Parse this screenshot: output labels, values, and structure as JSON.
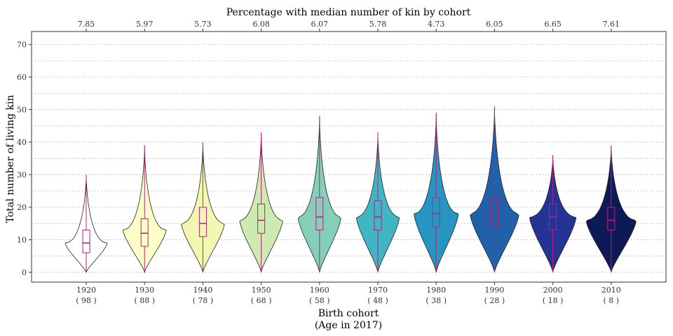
{
  "chart_data": {
    "type": "violin",
    "title": "Percentage with median number of kin by cohort",
    "xlabel_line1": "Birth cohort",
    "xlabel_line2": "(Age in 2017)",
    "ylabel": "Total number of living kin",
    "ylim": [
      -3,
      74
    ],
    "yticks": [
      0,
      10,
      20,
      30,
      40,
      50,
      60,
      70
    ],
    "grid": "horizontal dotted",
    "categories": [
      "1920",
      "1930",
      "1940",
      "1950",
      "1960",
      "1970",
      "1980",
      "1990",
      "2000",
      "2010"
    ],
    "ages": [
      "( 98 )",
      "( 88 )",
      "( 78 )",
      "( 68 )",
      "( 58 )",
      "( 48 )",
      "( 38 )",
      "( 28 )",
      "( 18 )",
      "( 8 )"
    ],
    "top_labels": [
      "7.85",
      "5.97",
      "5.73",
      "6.08",
      "6.07",
      "5.78",
      "4.73",
      "6.05",
      "6.65",
      "7.61"
    ],
    "fill_colors": [
      "#ffffff",
      "#fdfdc8",
      "#f2f7b2",
      "#cfeab0",
      "#84cfba",
      "#40b5c4",
      "#2596c2",
      "#2161aa",
      "#253494",
      "#0c1a56"
    ],
    "box_color": "#c51b7d",
    "series": [
      {
        "min": 0,
        "max": 30,
        "q1": 6,
        "median": 9,
        "q3": 13,
        "mode": 9,
        "width": 0.72
      },
      {
        "min": 0,
        "max": 39,
        "q1": 8,
        "median": 12,
        "q3": 16.5,
        "mode": 13,
        "width": 0.74
      },
      {
        "min": 0,
        "max": 40,
        "q1": 11,
        "median": 15,
        "q3": 20,
        "mode": 15,
        "width": 0.74
      },
      {
        "min": 0,
        "max": 43,
        "q1": 12,
        "median": 16,
        "q3": 21,
        "mode": 16,
        "width": 0.74
      },
      {
        "min": 0,
        "max": 48,
        "q1": 13,
        "median": 17,
        "q3": 23,
        "mode": 17,
        "width": 0.74
      },
      {
        "min": 0,
        "max": 43,
        "q1": 13,
        "median": 17,
        "q3": 22,
        "mode": 17,
        "width": 0.74
      },
      {
        "min": 0,
        "max": 49,
        "q1": 14,
        "median": 18,
        "q3": 23,
        "mode": 18,
        "width": 0.76
      },
      {
        "min": 0,
        "max": 51,
        "q1": 14,
        "median": 18,
        "q3": 23,
        "mode": 18,
        "width": 0.84
      },
      {
        "min": 0,
        "max": 36,
        "q1": 13,
        "median": 17,
        "q3": 21,
        "mode": 17,
        "width": 0.8
      },
      {
        "min": 0,
        "max": 39,
        "q1": 13,
        "median": 16,
        "q3": 20,
        "mode": 16,
        "width": 0.86
      }
    ]
  }
}
